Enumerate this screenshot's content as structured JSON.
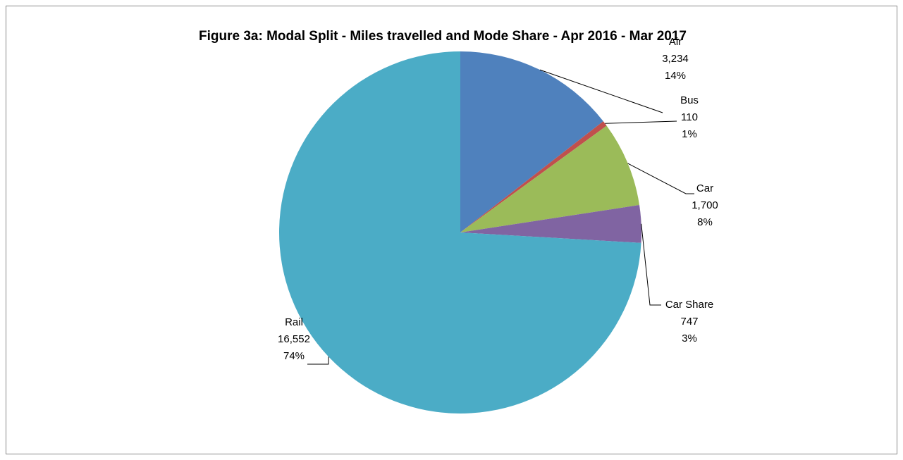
{
  "chart_data": {
    "type": "pie",
    "title": "Figure 3a:  Modal Split - Miles travelled  and Mode Share - Apr 2016 - Mar 2017",
    "categories": [
      "Air",
      "Bus",
      "Car",
      "Car Share",
      "Rail"
    ],
    "values": [
      3234,
      110,
      1700,
      747,
      16552
    ],
    "value_labels": [
      "3,234",
      "110",
      "1,700",
      "747",
      "16,552"
    ],
    "share_labels": [
      "14%",
      "1%",
      "8%",
      "3%",
      "74%"
    ],
    "colors": [
      "#4f81bd",
      "#c0504d",
      "#9bbb59",
      "#8064a2",
      "#4bacc6"
    ]
  }
}
